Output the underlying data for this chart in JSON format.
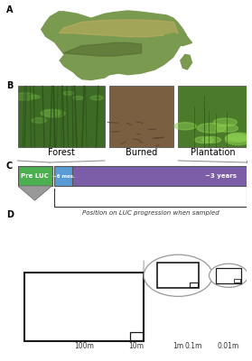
{
  "panel_labels": [
    "A",
    "B",
    "C",
    "D"
  ],
  "panel_label_fontsize": 7,
  "luc_bar_green_label": "Pre LUC",
  "luc_bar_blue_label": "~6 mos.",
  "luc_bar_purple_label": "~3 years",
  "luc_bar_xlabel": "Position on LUC progression when sampled",
  "luc_green_color": "#4caf50",
  "luc_blue_color": "#5b9bd5",
  "luc_purple_color": "#7b5ea7",
  "luc_gray_color": "#999999",
  "photo_labels": [
    "Forest",
    "Burned",
    "Plantation"
  ],
  "scale_labels": [
    "100m",
    "10m",
    "1m",
    "0.1m",
    "0.01m"
  ],
  "bg_color": "#ffffff",
  "box_edge_color": "#1a1a1a",
  "circle_color": "#999999",
  "africa_land_color": "#7a9a50",
  "africa_sahel_color": "#c8b060",
  "africa_ocean_color": "#8090a8",
  "africa_highlight": "#556b2f",
  "forest_color": "#3d6b25",
  "forest_dark": "#2a4a18",
  "burned_color": "#7a6040",
  "burned_dark": "#5a4030",
  "plantation_color": "#4a7a2a",
  "plantation_dark": "#2a5a10"
}
